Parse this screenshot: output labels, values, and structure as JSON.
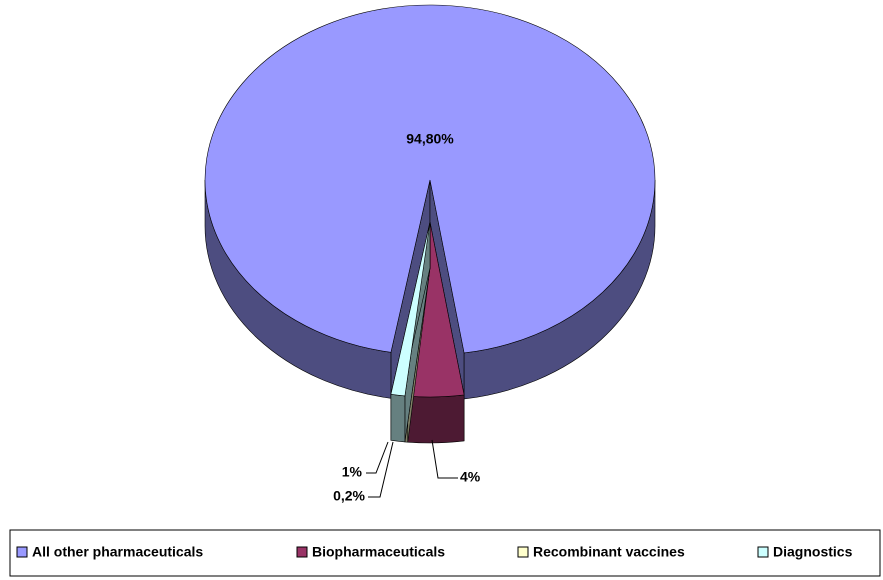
{
  "chart_data": {
    "type": "pie",
    "series": [
      {
        "name": "All other pharmaceuticals",
        "color": "#9999ff"
      },
      {
        "name": "Biopharmaceuticals",
        "color": "#993366"
      },
      {
        "name": "Recombinant vaccines",
        "color": "#ffffcc"
      },
      {
        "name": "Diagnostics",
        "color": "#ccffff"
      }
    ],
    "values": [
      94.8,
      4,
      0.2,
      1
    ],
    "value_labels": [
      "94,80%",
      "4%",
      "0,2%",
      "1%"
    ],
    "legend": "bottom"
  }
}
